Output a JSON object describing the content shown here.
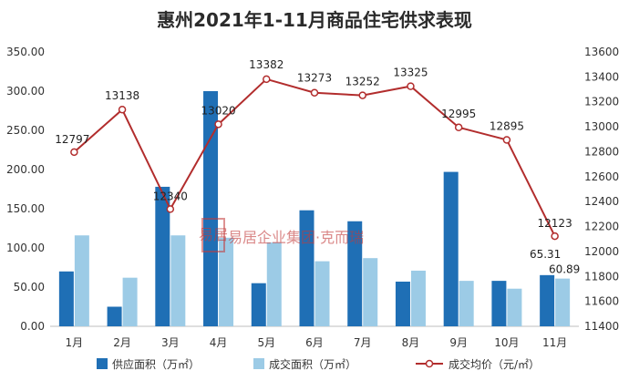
{
  "chart_data": {
    "type": "bar",
    "title": "惠州2021年1-11月商品住宅供求表现",
    "categories": [
      "1月",
      "2月",
      "3月",
      "4月",
      "5月",
      "6月",
      "7月",
      "8月",
      "9月",
      "10月",
      "11月"
    ],
    "series": [
      {
        "name": "供应面积（万㎡）",
        "kind": "bar",
        "axis": "left",
        "color": "#1f6fb5",
        "values": [
          70,
          25,
          178,
          300,
          55,
          148,
          134,
          57,
          197,
          58,
          65.31
        ]
      },
      {
        "name": "成交面积（万㎡）",
        "kind": "bar",
        "axis": "left",
        "color": "#9ccbe6",
        "values": [
          116,
          62,
          116,
          113,
          107,
          83,
          87,
          71,
          58,
          48,
          60.89
        ]
      },
      {
        "name": "成交均价（元/㎡）",
        "kind": "line",
        "axis": "right",
        "color": "#b22d2d",
        "values": [
          12797,
          13138,
          12340,
          13020,
          13382,
          13273,
          13252,
          13325,
          12995,
          12895,
          12123
        ]
      }
    ],
    "data_labels": {
      "bar_last": [
        "65.31",
        "60.89"
      ],
      "line": [
        "12797",
        "13138",
        "12340",
        "13020",
        "13382",
        "13273",
        "13252",
        "13325",
        "12995",
        "12895",
        "12123"
      ]
    },
    "y_left": {
      "min": 0,
      "max": 350,
      "step": 50,
      "ticks": [
        "0.00",
        "50.00",
        "100.00",
        "150.00",
        "200.00",
        "250.00",
        "300.00",
        "350.00"
      ]
    },
    "y_right": {
      "min": 11400,
      "max": 13600,
      "step": 200,
      "ticks": [
        "11400",
        "11600",
        "11800",
        "12000",
        "12200",
        "12400",
        "12600",
        "12800",
        "13000",
        "13200",
        "13400",
        "13600"
      ]
    },
    "grid": false,
    "legend_position": "bottom"
  },
  "watermark": {
    "seal": "易居",
    "text": "易居企业集团·克而瑞"
  }
}
